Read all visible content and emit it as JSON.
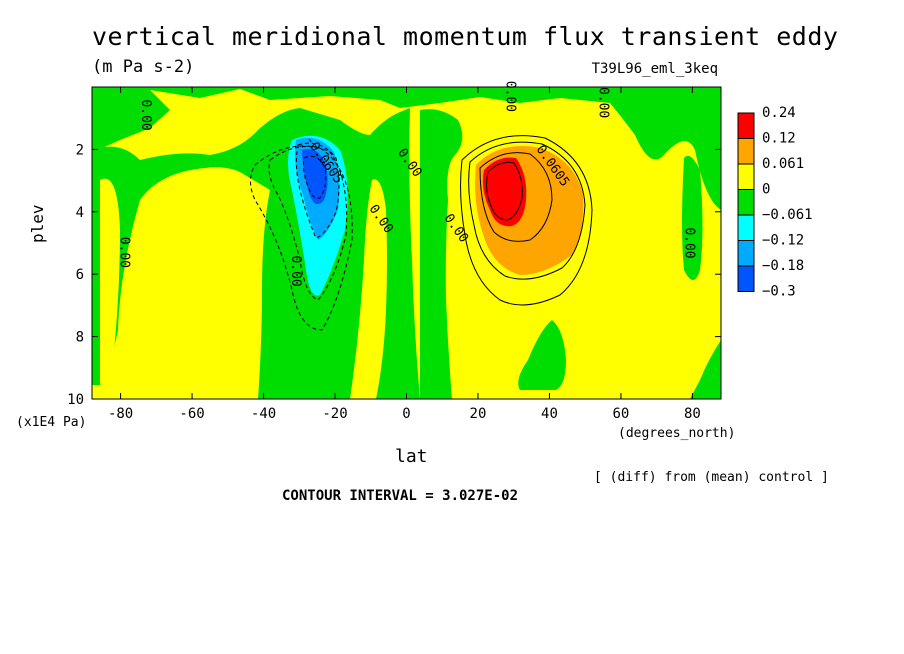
{
  "header": {
    "title": "vertical meridional momentum flux transient eddy",
    "units": "(m Pa s-2)",
    "experiment": "T39L96_eml_3keq"
  },
  "footer": {
    "diff_note": "[ (diff) from (mean) control ]",
    "contour_interval": "CONTOUR INTERVAL = 3.027E-02"
  },
  "chart_data": {
    "type": "contour",
    "xlabel": "lat",
    "xunit": "(degrees_north)",
    "ylabel": "plev",
    "yunit": "(x1E4 Pa)",
    "xlim": [
      -88,
      88
    ],
    "ylim": [
      10,
      0
    ],
    "xticks": [
      -80,
      -60,
      -40,
      -20,
      0,
      20,
      40,
      60,
      80
    ],
    "yticks": [
      2,
      4,
      6,
      8,
      10
    ],
    "contour_interval": 0.03027,
    "colorbar": {
      "labels": [
        "0.24",
        "0.12",
        "0.061",
        "0",
        "−0.061",
        "−0.12",
        "−0.18",
        "−0.3"
      ],
      "colors": [
        "#ff0000",
        "#ffa500",
        "#ffff00",
        "#00dd00",
        "#00ffff",
        "#00aaff",
        "#0055ff"
      ]
    },
    "contour_labels": [
      {
        "text": "0.00",
        "lat": -74,
        "plev": 0.9
      },
      {
        "text": "0.00",
        "lat": 28,
        "plev": 0.3
      },
      {
        "text": "0.00",
        "lat": 54,
        "plev": 0.5
      },
      {
        "text": "0.00",
        "lat": 0,
        "plev": 2.5
      },
      {
        "text": "0.00",
        "lat": -8,
        "plev": 4.3
      },
      {
        "text": "0.00",
        "lat": 13,
        "plev": 4.6
      },
      {
        "text": "0.00",
        "lat": -80,
        "plev": 5.3
      },
      {
        "text": "0.00",
        "lat": -32,
        "plev": 5.9
      },
      {
        "text": "0.00",
        "lat": 78,
        "plev": 5.0
      },
      {
        "text": "-0.0605",
        "lat": -24,
        "plev": 2.4
      },
      {
        "text": "0.0605",
        "lat": 40,
        "plev": 2.6
      }
    ],
    "extrema": [
      {
        "sign": "negative",
        "lat": -26,
        "plev": 3.0,
        "approx_value": -0.3
      },
      {
        "sign": "positive",
        "lat": 30,
        "plev": 3.0,
        "approx_value": 0.24
      }
    ]
  }
}
